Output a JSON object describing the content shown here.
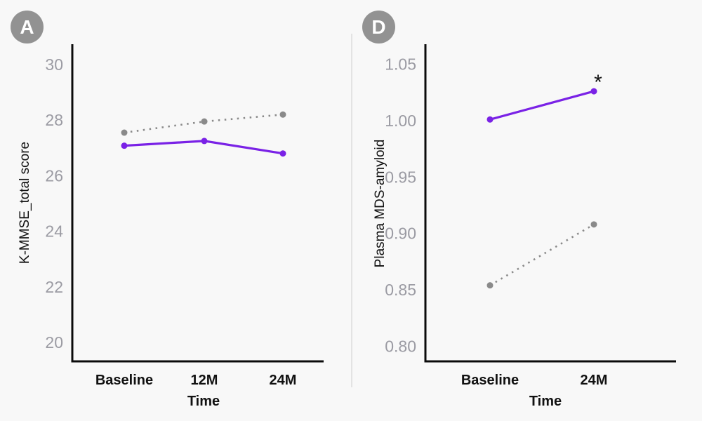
{
  "figure": {
    "background": "#f8f8f8",
    "divider_color": "#dcdcdc",
    "axis_color": "#0b0b0b",
    "accent_purple": "#7a22e6",
    "series_gray": "#8a8a8a",
    "badge_color": "#929292",
    "tick_label_color": "#9b9ba3"
  },
  "chart_data": [
    {
      "type": "line",
      "panel": "A",
      "xlabel": "Time",
      "ylabel": "K-MMSE_total score",
      "categories": [
        "Baseline",
        "12M",
        "24M"
      ],
      "ylim": [
        20,
        30
      ],
      "yticks": [
        "30",
        "28",
        "26",
        "24",
        "22",
        "20"
      ],
      "ytick_values": [
        30,
        28,
        26,
        24,
        22,
        20
      ],
      "grid": false,
      "legend": "none",
      "series": [
        {
          "name": "solid-purple",
          "color": "#7a22e6",
          "style": "solid",
          "values": [
            27.08,
            27.25,
            26.8
          ]
        },
        {
          "name": "dotted-gray",
          "color": "#8a8a8a",
          "style": "dotted",
          "values": [
            27.55,
            27.95,
            28.2
          ]
        }
      ],
      "annotations": []
    },
    {
      "type": "line",
      "panel": "D",
      "xlabel": "Time",
      "ylabel": "Plasma MDS-amyloid",
      "categories": [
        "Baseline",
        "24M"
      ],
      "ylim": [
        0.8,
        1.05
      ],
      "yticks": [
        "1.05",
        "1.00",
        "0.95",
        "0.90",
        "0.85",
        "0.80"
      ],
      "ytick_values": [
        1.05,
        1.0,
        0.95,
        0.9,
        0.85,
        0.8
      ],
      "grid": false,
      "legend": "none",
      "series": [
        {
          "name": "solid-purple",
          "color": "#7a22e6",
          "style": "solid",
          "values": [
            1.001,
            1.026
          ]
        },
        {
          "name": "dotted-gray",
          "color": "#8a8a8a",
          "style": "dotted",
          "values": [
            0.854,
            0.908
          ]
        }
      ],
      "annotations": [
        {
          "text": "*",
          "series": 0,
          "point": 1
        }
      ]
    }
  ]
}
